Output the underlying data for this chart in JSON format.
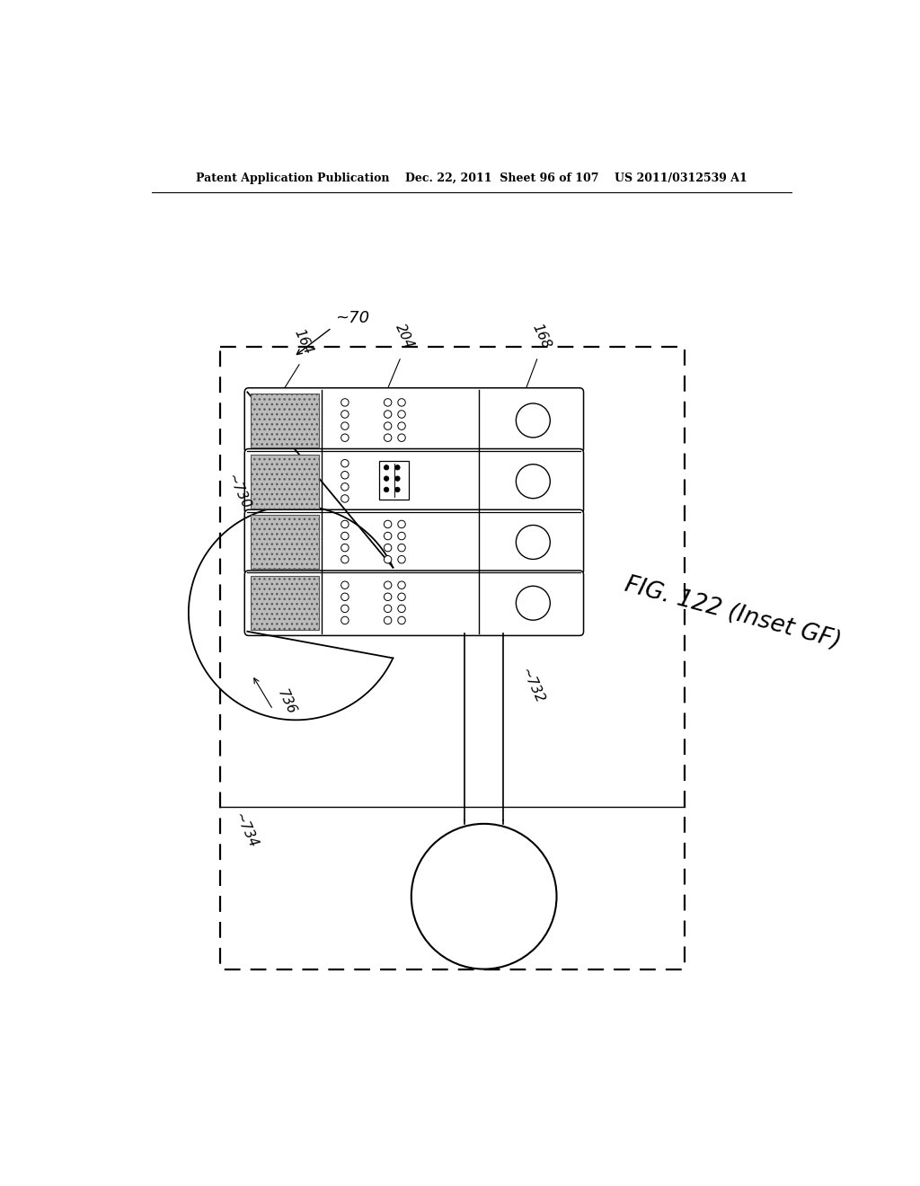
{
  "bg_color": "#ffffff",
  "header_text": "Patent Application Publication    Dec. 22, 2011  Sheet 96 of 107    US 2011/0312539 A1",
  "fig_label": "FIG. 122 (Inset GF)",
  "label_70": "~70",
  "label_164": "164",
  "label_204": "204",
  "label_168": "168",
  "label_730": "~730",
  "label_732": "~732",
  "label_734": "~734",
  "label_736": "736"
}
